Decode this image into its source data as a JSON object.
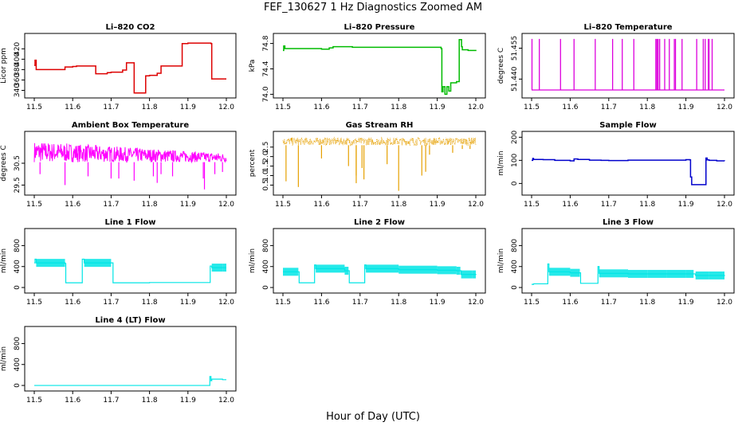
{
  "title": "FEF_130627  1 Hz Diagnostics Zoomed AM",
  "xlabel": "Hour of Day (UTC)",
  "chart_data": [
    {
      "type": "line",
      "title": "Li–820 CO2",
      "ylabel": "Licor ppm",
      "color": "#dd0000",
      "xlim": [
        11.5,
        12.0
      ],
      "xticks": [
        "11.5",
        "11.6",
        "11.7",
        "11.8",
        "11.9",
        "12.0"
      ],
      "ylim": [
        330,
        445
      ],
      "yticks": [
        340,
        360,
        380,
        400,
        420
      ],
      "x": [
        11.5,
        11.502,
        11.505,
        11.52,
        11.57,
        11.58,
        11.6,
        11.61,
        11.62,
        11.65,
        11.66,
        11.68,
        11.69,
        11.7,
        11.73,
        11.74,
        11.75,
        11.76,
        11.78,
        11.79,
        11.8,
        11.82,
        11.83,
        11.84,
        11.86,
        11.87,
        11.88,
        11.885,
        11.9,
        11.92,
        11.94,
        11.95,
        11.96,
        11.962,
        11.965,
        11.97,
        11.99,
        12.0
      ],
      "y": [
        388,
        398,
        380,
        380,
        380,
        385,
        386,
        387,
        387,
        387,
        372,
        372,
        374,
        375,
        379,
        393,
        393,
        335,
        335,
        368,
        369,
        373,
        387,
        387,
        387,
        387,
        387,
        430,
        431,
        431,
        431,
        431,
        430,
        362,
        362,
        362,
        362,
        362
      ]
    },
    {
      "type": "line",
      "title": "Li–820 Pressure",
      "ylabel": "kPa",
      "color": "#00bb00",
      "xlim": [
        11.5,
        12.0
      ],
      "xticks": [
        "11.5",
        "11.6",
        "11.7",
        "11.8",
        "11.9",
        "12.0"
      ],
      "ylim": [
        73.98,
        74.92
      ],
      "yticks": [
        "74.0",
        "74.4",
        "74.8"
      ],
      "yticks_val": [
        74.0,
        74.4,
        74.8
      ],
      "x": [
        11.5,
        11.502,
        11.505,
        11.55,
        11.6,
        11.62,
        11.63,
        11.68,
        11.72,
        11.75,
        11.8,
        11.85,
        11.88,
        11.9,
        11.91,
        11.912,
        11.915,
        11.92,
        11.925,
        11.93,
        11.935,
        11.95,
        11.955,
        11.957,
        11.96,
        11.963,
        11.965,
        11.97,
        11.98,
        12.0
      ],
      "y": [
        74.69,
        74.76,
        74.72,
        74.72,
        74.71,
        74.73,
        74.75,
        74.74,
        74.74,
        74.74,
        74.74,
        74.74,
        74.74,
        74.74,
        74.72,
        74.04,
        74.12,
        74.0,
        74.12,
        74.05,
        74.18,
        74.2,
        74.2,
        74.86,
        74.86,
        74.75,
        74.7,
        74.7,
        74.69,
        74.68
      ]
    },
    {
      "type": "line",
      "title": "Li–820 Temperature",
      "ylabel": "degrees C",
      "color": "#dd00dd",
      "xlim": [
        11.5,
        12.0
      ],
      "xticks": [
        "11.5",
        "11.6",
        "11.7",
        "11.8",
        "11.9",
        "12.0"
      ],
      "ylim": [
        51.432,
        51.461
      ],
      "yticks": [
        "51.440",
        "51.455"
      ],
      "yticks_val": [
        51.44,
        51.455
      ],
      "baseline": 51.4347,
      "spike_top": 51.4595,
      "spikes": [
        11.501,
        11.52,
        11.575,
        11.61,
        11.665,
        11.71,
        11.735,
        11.765,
        11.822,
        11.825,
        11.828,
        11.832,
        11.845,
        11.857,
        11.87,
        11.873,
        11.89,
        11.928,
        11.945,
        11.95,
        11.958,
        11.96,
        11.968
      ]
    },
    {
      "type": "line",
      "title": "Ambient Box Temperature",
      "ylabel": "degrees C",
      "color": "#ff00ff",
      "xlim": [
        11.5,
        12.0
      ],
      "xticks": [
        "11.5",
        "11.6",
        "11.7",
        "11.8",
        "11.9",
        "12.0"
      ],
      "ylim": [
        29.15,
        31.85
      ],
      "yticks": [
        "29.5",
        "30.5"
      ],
      "yticks_val": [
        29.5,
        30.5
      ],
      "band_low": 30.55,
      "band_high": 31.5,
      "band_end_high": 30.95,
      "dips": [
        [
          11.515,
          30.0
        ],
        [
          11.58,
          29.5
        ],
        [
          11.64,
          29.9
        ],
        [
          11.7,
          29.8
        ],
        [
          11.72,
          29.8
        ],
        [
          11.76,
          29.7
        ],
        [
          11.81,
          29.9
        ],
        [
          11.82,
          29.6
        ],
        [
          11.83,
          30.0
        ],
        [
          11.86,
          29.9
        ],
        [
          11.94,
          29.8
        ],
        [
          11.943,
          29.3
        ],
        [
          11.97,
          30.0
        ],
        [
          11.99,
          30.1
        ]
      ]
    },
    {
      "type": "scatter",
      "title": "Gas Stream RH",
      "ylabel": "percent",
      "color": "#e6a000",
      "xlim": [
        11.5,
        12.0
      ],
      "xticks": [
        "11.5",
        "11.6",
        "11.7",
        "11.8",
        "11.9",
        "12.0"
      ],
      "ylim": [
        0.1,
        3.2
      ],
      "yticks": [
        "0.5",
        "1.0",
        "1.5",
        "2.0",
        "2.5"
      ],
      "yticks_val": [
        0.5,
        1.0,
        1.5,
        2.0,
        2.5
      ],
      "band_low": 2.6,
      "band_high": 3.0,
      "dips": [
        [
          11.508,
          0.7
        ],
        [
          11.54,
          0.4
        ],
        [
          11.6,
          1.9
        ],
        [
          11.67,
          1.5
        ],
        [
          11.69,
          0.6
        ],
        [
          11.69,
          1.0
        ],
        [
          11.705,
          1.4
        ],
        [
          11.71,
          0.8
        ],
        [
          11.77,
          1.6
        ],
        [
          11.8,
          0.2
        ],
        [
          11.86,
          1.0
        ],
        [
          11.87,
          1.2
        ],
        [
          11.88,
          2.1
        ],
        [
          11.94,
          2.2
        ],
        [
          11.965,
          2.4
        ],
        [
          11.985,
          2.4
        ]
      ]
    },
    {
      "type": "line",
      "title": "Sample Flow",
      "ylabel": "ml/min",
      "color": "#0000cc",
      "xlim": [
        11.5,
        12.0
      ],
      "xticks": [
        "11.5",
        "11.6",
        "11.7",
        "11.8",
        "11.9",
        "12.0"
      ],
      "ylim": [
        -40,
        215
      ],
      "yticks": [
        0,
        100,
        200
      ],
      "x": [
        11.5,
        11.503,
        11.505,
        11.53,
        11.56,
        11.6,
        11.61,
        11.62,
        11.65,
        11.68,
        11.7,
        11.75,
        11.8,
        11.85,
        11.9,
        11.91,
        11.912,
        11.915,
        11.93,
        11.95,
        11.952,
        11.955,
        11.96,
        11.98,
        12.0
      ],
      "y": [
        100,
        108,
        104,
        103,
        100,
        98,
        106,
        104,
        101,
        100,
        99,
        101,
        101,
        101,
        103,
        102,
        28,
        -5,
        -5,
        -5,
        110,
        102,
        100,
        98,
        97
      ]
    },
    {
      "type": "line",
      "title": "Line 1 Flow",
      "ylabel": "ml/min",
      "color": "#00e5e5",
      "xlim": [
        11.5,
        12.0
      ],
      "xticks": [
        "11.5",
        "11.6",
        "11.7",
        "11.8",
        "11.9",
        "12.0"
      ],
      "ylim": [
        -60,
        1080
      ],
      "yticks": [
        0,
        400,
        800
      ],
      "x": [
        11.5,
        11.502,
        11.505,
        11.58,
        11.582,
        11.62,
        11.625,
        11.63,
        11.7,
        11.705,
        11.75,
        11.8,
        11.85,
        11.9,
        11.955,
        11.958,
        11.962,
        11.99,
        12.0
      ],
      "y": [
        470,
        540,
        470,
        460,
        90,
        90,
        540,
        470,
        470,
        90,
        90,
        95,
        95,
        95,
        95,
        410,
        380,
        380,
        380
      ]
    },
    {
      "type": "line",
      "title": "Line 2 Flow",
      "ylabel": "ml/min",
      "color": "#00e5e5",
      "xlim": [
        11.5,
        12.0
      ],
      "xticks": [
        "11.5",
        "11.6",
        "11.7",
        "11.8",
        "11.9",
        "12.0"
      ],
      "ylim": [
        -60,
        1080
      ],
      "yticks": [
        0,
        400,
        800
      ],
      "x": [
        11.5,
        11.54,
        11.542,
        11.58,
        11.582,
        11.585,
        11.66,
        11.67,
        11.672,
        11.71,
        11.712,
        11.715,
        11.8,
        11.9,
        11.95,
        11.96,
        11.962,
        11.99,
        12.0
      ],
      "y": [
        300,
        300,
        90,
        90,
        430,
        360,
        320,
        320,
        90,
        90,
        430,
        360,
        340,
        330,
        320,
        320,
        250,
        250,
        260
      ]
    },
    {
      "type": "line",
      "title": "Line 3 Flow",
      "ylabel": "ml/min",
      "color": "#00e5e5",
      "xlim": [
        11.5,
        12.0
      ],
      "xticks": [
        "11.5",
        "11.6",
        "11.7",
        "11.8",
        "11.9",
        "12.0"
      ],
      "ylim": [
        -60,
        1080
      ],
      "yticks": [
        0,
        400,
        800
      ],
      "x": [
        11.5,
        11.505,
        11.54,
        11.542,
        11.545,
        11.6,
        11.625,
        11.627,
        11.67,
        11.672,
        11.675,
        11.75,
        11.8,
        11.85,
        11.9,
        11.92,
        11.925,
        11.96,
        12.0
      ],
      "y": [
        60,
        70,
        70,
        450,
        300,
        280,
        280,
        80,
        80,
        400,
        270,
        260,
        260,
        260,
        260,
        260,
        230,
        230,
        220
      ]
    },
    {
      "type": "line",
      "title": "Line 4 (LT) Flow",
      "ylabel": "ml/min",
      "color": "#00e5e5",
      "xlim": [
        11.5,
        12.0
      ],
      "xticks": [
        "11.5",
        "11.6",
        "11.7",
        "11.8",
        "11.9",
        "12.0"
      ],
      "ylim": [
        -60,
        1080
      ],
      "yticks": [
        0,
        400,
        800
      ],
      "x": [
        11.5,
        11.6,
        11.7,
        11.8,
        11.9,
        11.955,
        11.957,
        11.96,
        11.962,
        11.99,
        12.0
      ],
      "y": [
        0,
        0,
        0,
        0,
        0,
        0,
        170,
        90,
        120,
        110,
        110
      ]
    }
  ]
}
